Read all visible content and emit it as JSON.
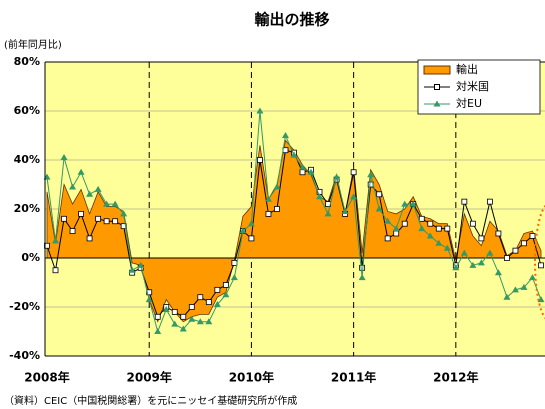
{
  "chart_data": {
    "type": "area-line",
    "title": "輸出の推移",
    "y_axis_label": "(前年同月比)",
    "note": "（資料）CEIC（中国税関総署）を元にニッセイ基礎研究所が作成",
    "categories": [
      "2008年",
      null,
      null,
      null,
      null,
      null,
      null,
      null,
      null,
      null,
      null,
      null,
      "2009年",
      null,
      null,
      null,
      null,
      null,
      null,
      null,
      null,
      null,
      null,
      null,
      "2010年",
      null,
      null,
      null,
      null,
      null,
      null,
      null,
      null,
      null,
      null,
      null,
      "2011年",
      null,
      null,
      null,
      null,
      null,
      null,
      null,
      null,
      null,
      null,
      null,
      "2012年",
      null,
      null,
      null,
      null,
      null,
      null,
      null,
      null,
      null,
      null
    ],
    "series": [
      {
        "name": "輸出",
        "color": "#ff9900",
        "values": [
          27,
          6,
          30,
          22,
          28,
          18,
          27,
          21,
          21,
          19,
          -2,
          -3,
          -17,
          -26,
          -17,
          -22,
          -26,
          -24,
          -23,
          -23,
          -16,
          -14,
          -1,
          17,
          21,
          46,
          24,
          30,
          48,
          44,
          38,
          34,
          25,
          23,
          34,
          18,
          37,
          2,
          36,
          30,
          19,
          18,
          20,
          25,
          17,
          16,
          14,
          14,
          -1,
          18,
          9,
          5,
          15,
          11,
          1,
          3,
          10,
          11,
          3
        ]
      },
      {
        "name": "対米国",
        "color": "#000000",
        "values": [
          5,
          -5,
          16,
          11,
          18,
          8,
          16,
          15,
          15,
          13,
          -6,
          -4,
          -14,
          -24,
          -20,
          -22,
          -24,
          -20,
          -16,
          -18,
          -13,
          -11,
          -2,
          11,
          8,
          40,
          18,
          20,
          44,
          43,
          35,
          36,
          27,
          22,
          32,
          18,
          35,
          -4,
          30,
          26,
          8,
          10,
          14,
          22,
          16,
          14,
          12,
          12,
          -3,
          23,
          14,
          8,
          23,
          10,
          0,
          3,
          6,
          9,
          -3
        ]
      },
      {
        "name": "対EU",
        "color": "#339966",
        "values": [
          33,
          7,
          41,
          29,
          35,
          26,
          28,
          22,
          22,
          18,
          -5,
          -3,
          -17,
          -30,
          -21,
          -27,
          -29,
          -25,
          -26,
          -26,
          -19,
          -15,
          -8,
          11,
          14,
          60,
          24,
          29,
          50,
          42,
          37,
          35,
          25,
          18,
          33,
          19,
          25,
          -8,
          34,
          20,
          15,
          12,
          22,
          22,
          12,
          9,
          6,
          4,
          -4,
          2,
          -3,
          -2,
          2,
          -6,
          -16,
          -13,
          -12,
          -8,
          -17
        ]
      }
    ],
    "ylim": [
      -40,
      80
    ],
    "yticks": [
      {
        "value": -40,
        "label": "-40%"
      },
      {
        "value": -20,
        "label": "-20%"
      },
      {
        "value": 0,
        "label": "0%"
      },
      {
        "value": 20,
        "label": "20%"
      },
      {
        "value": 40,
        "label": "40%"
      },
      {
        "value": 60,
        "label": "60%"
      },
      {
        "value": 80,
        "label": "80%"
      }
    ],
    "grid": true,
    "legend": "upper right"
  }
}
